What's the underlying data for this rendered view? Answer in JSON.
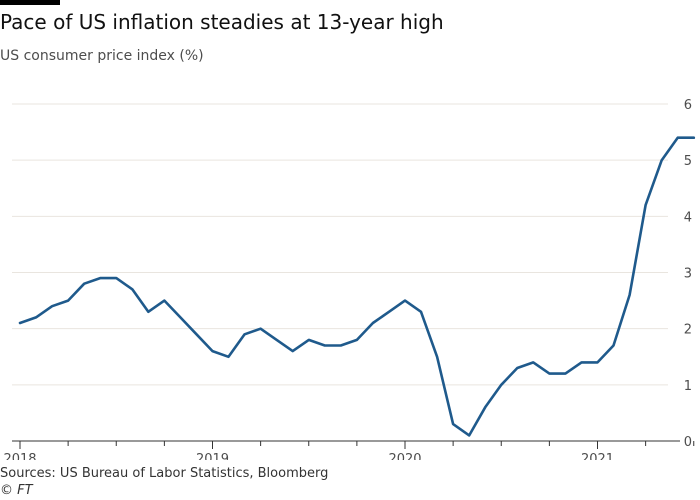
{
  "title": "Pace of US inflation steadies at 13-year high",
  "subtitle": "US consumer price index (%)",
  "source": "Sources: US Bureau of Labor Statistics, Bloomberg",
  "credit": "© FT",
  "colors": {
    "line": "#1f5a8c",
    "grid": "#e9e5df",
    "axis": "#333333",
    "accent_bar": "#000000"
  },
  "chart_data": {
    "type": "line",
    "title": "Pace of US inflation steadies at 13-year high",
    "ylabel": "",
    "xlabel": "",
    "ylim": [
      0,
      6
    ],
    "y_ticks": [
      "0",
      "1",
      "2",
      "3",
      "4",
      "5",
      "6"
    ],
    "x_ticks": [
      "2018",
      "2019",
      "2020",
      "2021"
    ],
    "grid": true,
    "series": [
      {
        "x": [
          "2018-01",
          "2018-02",
          "2018-03",
          "2018-04",
          "2018-05",
          "2018-06",
          "2018-07",
          "2018-08",
          "2018-09",
          "2018-10",
          "2018-11",
          "2018-12",
          "2019-01",
          "2019-02",
          "2019-03",
          "2019-04",
          "2019-05",
          "2019-06",
          "2019-07",
          "2019-08",
          "2019-09",
          "2019-10",
          "2019-11",
          "2019-12",
          "2020-01",
          "2020-02",
          "2020-03",
          "2020-04",
          "2020-05",
          "2020-06",
          "2020-07",
          "2020-08",
          "2020-09",
          "2020-10",
          "2020-11",
          "2020-12",
          "2021-01",
          "2021-02",
          "2021-03",
          "2021-04",
          "2021-05",
          "2021-06",
          "2021-07"
        ],
        "values": [
          2.1,
          2.2,
          2.4,
          2.5,
          2.8,
          2.9,
          2.9,
          2.7,
          2.3,
          2.5,
          2.2,
          1.9,
          1.6,
          1.5,
          1.9,
          2.0,
          1.8,
          1.6,
          1.8,
          1.7,
          1.7,
          1.8,
          2.1,
          2.3,
          2.5,
          2.3,
          1.5,
          0.3,
          0.1,
          0.6,
          1.0,
          1.3,
          1.4,
          1.2,
          1.2,
          1.4,
          1.4,
          1.7,
          2.6,
          4.2,
          5.0,
          5.4,
          5.4
        ]
      }
    ]
  }
}
